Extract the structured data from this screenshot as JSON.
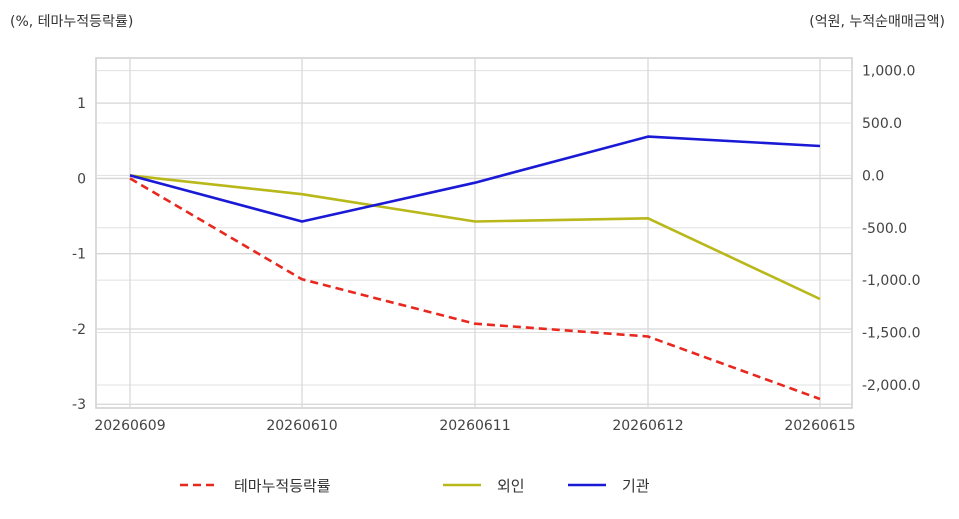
{
  "chart_data": {
    "type": "line",
    "left_axis_label": "(%, 테마누적등락률)",
    "right_axis_label": "(억원, 누적순매매금액)",
    "categories": [
      "20260609",
      "20260610",
      "20260611",
      "20260612",
      "20260615"
    ],
    "left_axis": {
      "ticks": [
        "1",
        "0",
        "-1",
        "-2",
        "-3"
      ],
      "tick_values": [
        1,
        0,
        -1,
        -2,
        -3
      ],
      "range": [
        -3.05,
        1.6
      ]
    },
    "right_axis": {
      "ticks": [
        "1,000.0",
        "500.0",
        "0.0",
        "-500.0",
        "-1,000.0",
        "-1,500.0",
        "-2,000.0"
      ],
      "tick_values": [
        1000,
        500,
        0,
        -500,
        -1000,
        -1500,
        -2000
      ],
      "range": [
        -2220,
        1120
      ]
    },
    "series": [
      {
        "name": "테마누적등락률",
        "axis": "left",
        "color": "#e8281e",
        "dash": true,
        "values": [
          0,
          -1.34,
          -1.93,
          -2.1,
          -2.93
        ]
      },
      {
        "name": "외인",
        "axis": "right",
        "color": "#b8b81a",
        "dash": false,
        "values": [
          0,
          -180,
          -440,
          -410,
          -1180
        ]
      },
      {
        "name": "기관",
        "axis": "right",
        "color": "#1a1ad6",
        "dash": false,
        "values": [
          0,
          -440,
          -70,
          370,
          280
        ]
      }
    ],
    "grid": true,
    "legend_position": "bottom"
  }
}
